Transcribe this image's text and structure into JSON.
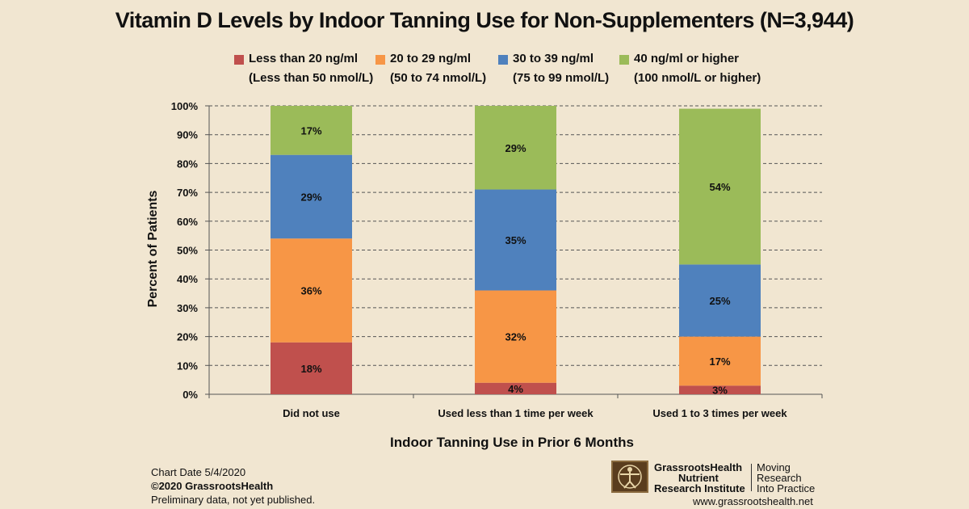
{
  "chart_data": {
    "type": "bar",
    "stacked": true,
    "title": "Vitamin D Levels by Indoor Tanning Use for Non-Supplementers (N=3,944)",
    "xlabel": "Indoor Tanning Use in Prior 6 Months",
    "ylabel": "Percent of Patients",
    "ylim": [
      0,
      100
    ],
    "yticks": [
      0,
      10,
      20,
      30,
      40,
      50,
      60,
      70,
      80,
      90,
      100
    ],
    "ytick_labels": [
      "0%",
      "10%",
      "20%",
      "30%",
      "40%",
      "50%",
      "60%",
      "70%",
      "80%",
      "90%",
      "100%"
    ],
    "grid": true,
    "legend_position": "top",
    "categories": [
      "Did not use",
      "Used less than 1 time per week",
      "Used 1 to 3 times per week"
    ],
    "series": [
      {
        "name": "Less than 20 ng/ml",
        "name_line2": "(Less than 50 nmol/L)",
        "color": "#c0504d",
        "values": [
          18,
          4,
          3
        ],
        "labels": [
          "18%",
          "4%",
          "3%"
        ]
      },
      {
        "name": "20 to 29 ng/ml",
        "name_line2": "(50 to 74 nmol/L)",
        "color": "#f79646",
        "values": [
          36,
          32,
          17
        ],
        "labels": [
          "36%",
          "32%",
          "17%"
        ]
      },
      {
        "name": "30 to 39 ng/ml",
        "name_line2": "(75 to 99 nmol/L)",
        "color": "#4f81bd",
        "values": [
          29,
          35,
          25
        ],
        "labels": [
          "29%",
          "35%",
          "25%"
        ]
      },
      {
        "name": "40 ng/ml or higher",
        "name_line2": "(100 nmol/L or higher)",
        "color": "#9bbb59",
        "values": [
          17,
          29,
          54
        ],
        "labels": [
          "17%",
          "29%",
          "54%"
        ]
      }
    ]
  },
  "footer": {
    "chart_date": "Chart Date 5/4/2020",
    "copyright": "©2020 GrassrootsHealth",
    "note": "Preliminary data, not yet published."
  },
  "branding": {
    "org_line1": "GrassrootsHealth",
    "org_line2": "Nutrient",
    "org_line3": "Research Institute",
    "tagline1": "Moving",
    "tagline2": "Research",
    "tagline3": "Into Practice",
    "website": "www.grassrootshealth.net"
  }
}
